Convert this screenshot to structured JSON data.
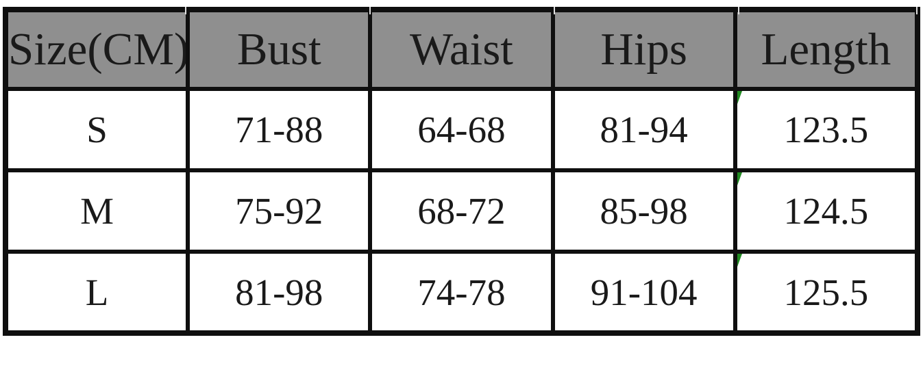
{
  "chart_data": {
    "type": "table",
    "title": "",
    "columns": [
      "Size(CM)",
      "Bust",
      "Waist",
      "Hips",
      "Length"
    ],
    "rows": [
      [
        "S",
        "71-88",
        "64-68",
        "81-94",
        "123.5"
      ],
      [
        "M",
        "75-92",
        "68-72",
        "85-98",
        "124.5"
      ],
      [
        "L",
        "81-98",
        "74-78",
        "91-104",
        "125.5"
      ]
    ],
    "layout_hints": {
      "header_background": "#8f8f8f",
      "border_color": "#0f0f0f",
      "text_color": "#1a1a1a",
      "grid": "on"
    }
  },
  "icons": {
    "cell_error_indicator": "green-corner-triangle"
  },
  "style": {
    "header_bg": "#8f8f8f",
    "border_color": "#0f0f0f",
    "text_color": "#1a1a1a",
    "indicator_color": "#218a22"
  }
}
